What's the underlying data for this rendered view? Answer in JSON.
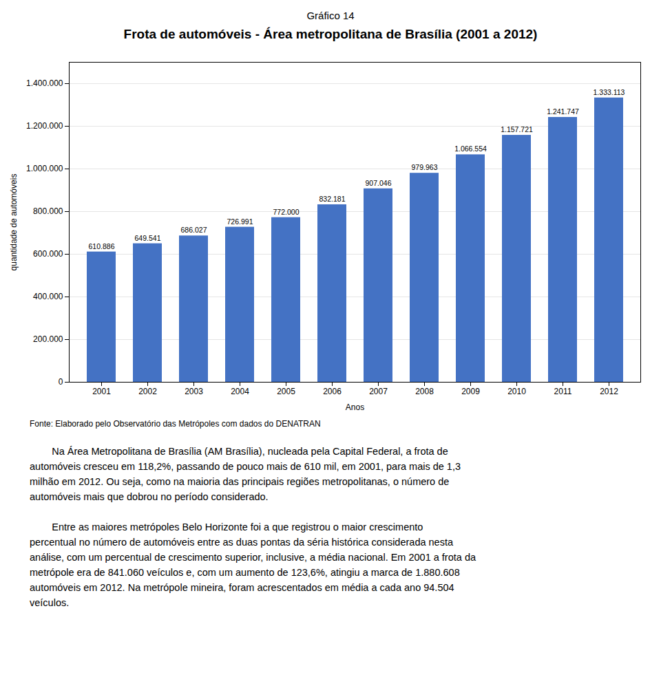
{
  "chart_data": {
    "type": "bar",
    "suptitle": "Gráfico 14",
    "title": "Frota de automóveis - Área metropolitana de Brasília (2001 a 2012)",
    "categories": [
      "2001",
      "2002",
      "2003",
      "2004",
      "2005",
      "2006",
      "2007",
      "2008",
      "2009",
      "2010",
      "2011",
      "2012"
    ],
    "values": [
      610886,
      649541,
      686027,
      726991,
      772000,
      832181,
      907046,
      979963,
      1066554,
      1157721,
      1241747,
      1333113
    ],
    "value_labels": [
      "610.886",
      "649.541",
      "686.027",
      "726.991",
      "772.000",
      "832.181",
      "907.046",
      "979.963",
      "1.066.554",
      "1.157.721",
      "1.241.747",
      "1.333.113"
    ],
    "data_labels": true,
    "color": "#4472C4",
    "xlabel": "Anos",
    "ylabel": "quantidade de automóveis",
    "ylim": [
      0,
      1500000
    ],
    "yticks": [
      0,
      {
        "value": 200000,
        "label": "200.000"
      },
      {
        "value": 400000,
        "label": "400.000"
      },
      {
        "value": 600000,
        "label": "600.000"
      },
      {
        "value": 800000,
        "label": "800.000"
      },
      {
        "value": 1000000,
        "label": "1.000.000"
      },
      {
        "value": 1200000,
        "label": "1.200.000"
      },
      {
        "value": 1400000,
        "label": "1.400.000"
      }
    ],
    "grid": true,
    "caption": "Fonte: Elaborado pelo Observatório das Metrópoles com dados do DENATRAN",
    "paragraphs": [
      [
        "        Na Área Metropolitana de Brasília (AM Brasília), nucleada pela Capital Federal, a frota de",
        "automóveis cresceu em 118,2%, passando de pouco mais de 610 mil, em 2001, para mais de 1,3",
        "milhão em 2012. Ou seja, como na maioria das principais regiões metropolitanas, o número de",
        "automóveis mais que dobrou no período considerado."
      ],
      [
        "        Entre as maiores metrópoles Belo Horizonte foi a que registrou o maior crescimento",
        "percentual no número de automóveis entre as duas pontas da séria histórica considerada nesta",
        "análise, com um percentual de crescimento superior, inclusive, a média nacional. Em 2001 a frota da",
        "metrópole era de 841.060 veículos e, com um aumento de 123,6%, atingiu a marca de 1.880.608",
        "automóveis em 2012. Na metrópole mineira, foram acrescentados em média a cada ano 94.504",
        "veículos."
      ]
    ]
  }
}
